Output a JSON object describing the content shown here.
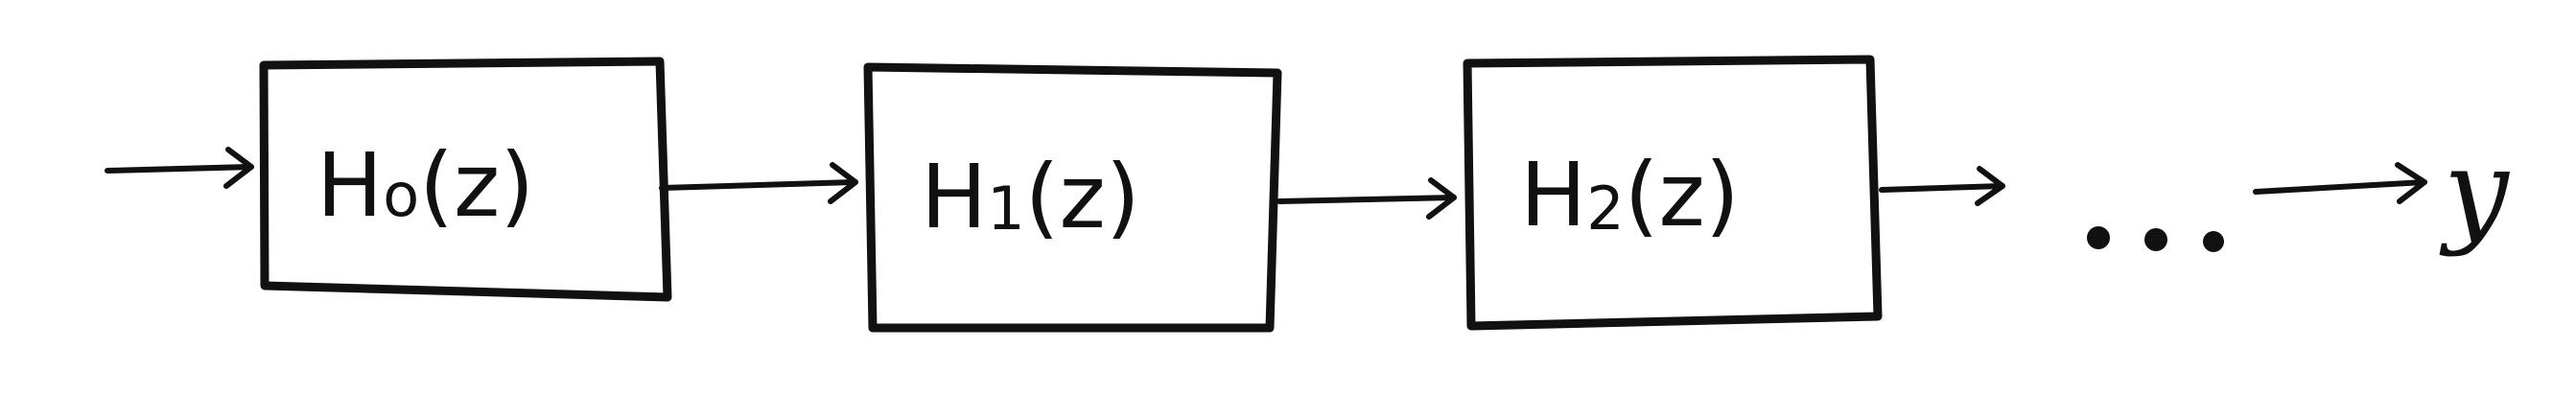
{
  "diagram": {
    "blocks": [
      {
        "base": "H",
        "subscript": "o",
        "suffix": "(z)"
      },
      {
        "base": "H",
        "subscript": "1",
        "suffix": "(z)"
      },
      {
        "base": "H",
        "subscript": "2",
        "suffix": "(z)"
      }
    ],
    "output_label": "y"
  }
}
